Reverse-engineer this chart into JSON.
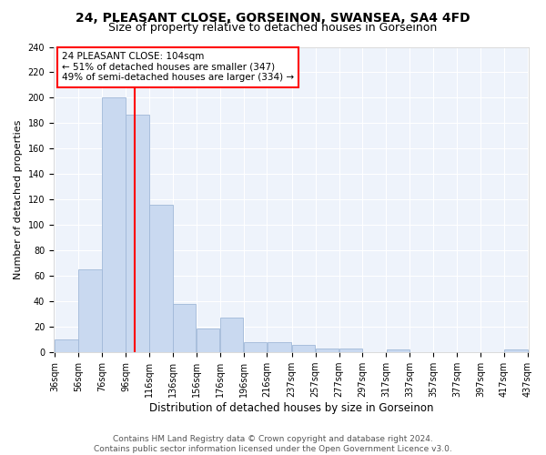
{
  "title": "24, PLEASANT CLOSE, GORSEINON, SWANSEA, SA4 4FD",
  "subtitle": "Size of property relative to detached houses in Gorseinon",
  "xlabel": "Distribution of detached houses by size in Gorseinon",
  "ylabel": "Number of detached properties",
  "bar_edges": [
    36,
    56,
    76,
    96,
    116,
    136,
    156,
    176,
    196,
    216,
    237,
    257,
    277,
    297,
    317,
    337,
    357,
    377,
    397,
    417,
    437
  ],
  "bar_heights": [
    10,
    65,
    200,
    187,
    116,
    38,
    19,
    27,
    8,
    8,
    6,
    3,
    3,
    0,
    2,
    0,
    0,
    0,
    0,
    2
  ],
  "bar_color": "#c9d9f0",
  "bar_edgecolor": "#a0b8d8",
  "property_line_x": 104,
  "property_line_color": "red",
  "annotation_text": "24 PLEASANT CLOSE: 104sqm\n← 51% of detached houses are smaller (347)\n49% of semi-detached houses are larger (334) →",
  "annotation_box_edgecolor": "red",
  "annotation_box_facecolor": "white",
  "ylim": [
    0,
    240
  ],
  "yticks": [
    0,
    20,
    40,
    60,
    80,
    100,
    120,
    140,
    160,
    180,
    200,
    220,
    240
  ],
  "background_color": "#eef3fb",
  "footer_text": "Contains HM Land Registry data © Crown copyright and database right 2024.\nContains public sector information licensed under the Open Government Licence v3.0.",
  "title_fontsize": 10,
  "subtitle_fontsize": 9,
  "xlabel_fontsize": 8.5,
  "ylabel_fontsize": 8,
  "tick_fontsize": 7,
  "annotation_fontsize": 7.5,
  "footer_fontsize": 6.5
}
